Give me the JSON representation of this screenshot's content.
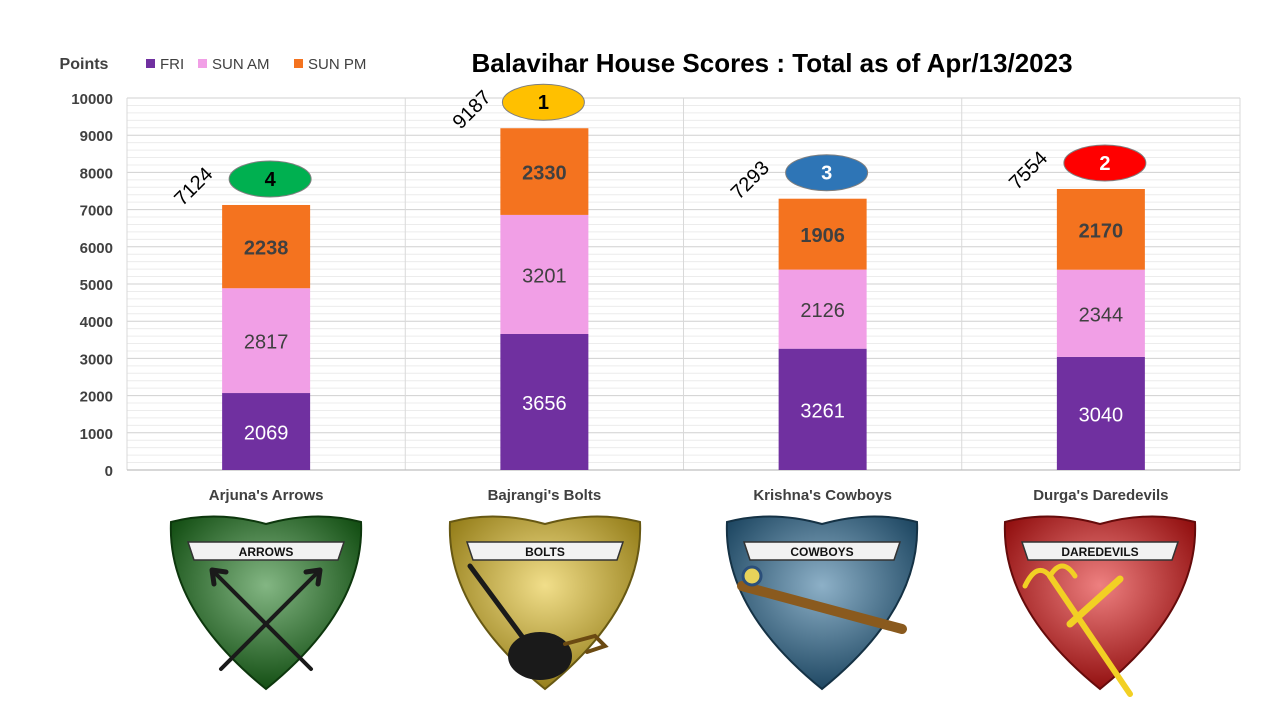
{
  "chart_data": {
    "type": "bar",
    "stacked": true,
    "title": "Balavihar House Scores : Total as of Apr/13/2023",
    "ylabel": "Points",
    "ylim": [
      0,
      10000
    ],
    "yticks": [
      "0",
      "1000",
      "2000",
      "3000",
      "4000",
      "5000",
      "6000",
      "7000",
      "8000",
      "9000",
      "10000"
    ],
    "grid": true,
    "legend_position": "top-left",
    "categories": [
      "Arjuna's Arrows",
      "Bajrangi's Bolts",
      "Krishna's Cowboys",
      "Durga's Daredevils"
    ],
    "series": [
      {
        "name": "FRI",
        "color": "#7030a0",
        "values": [
          2069,
          3656,
          3261,
          3040
        ]
      },
      {
        "name": "SUN AM",
        "color": "#f19fe6",
        "values": [
          2817,
          3201,
          2126,
          2344
        ]
      },
      {
        "name": "SUN PM",
        "color": "#f4731f",
        "values": [
          2238,
          2330,
          1906,
          2170
        ]
      }
    ],
    "totals": [
      "7124",
      "9187",
      "7293",
      "7554"
    ],
    "ranks": [
      {
        "label": "4",
        "color": "#00b050",
        "text_color": "#000000"
      },
      {
        "label": "1",
        "color": "#ffc000",
        "text_color": "#000000"
      },
      {
        "label": "3",
        "color": "#2e75b6",
        "text_color": "#ffffff"
      },
      {
        "label": "2",
        "color": "#ff0000",
        "text_color": "#ffffff"
      }
    ]
  },
  "badges": [
    {
      "banner": "ARROWS",
      "icon": "crossed-arrows-icon",
      "color": "#1e7a1e"
    },
    {
      "banner": "BOLTS",
      "icon": "mace-icon",
      "color": "#e6c32a"
    },
    {
      "banner": "COWBOYS",
      "icon": "flute-icon",
      "color": "#2f6f99"
    },
    {
      "banner": "DAREDEVILS",
      "icon": "trident-icon",
      "color": "#e01818"
    }
  ]
}
